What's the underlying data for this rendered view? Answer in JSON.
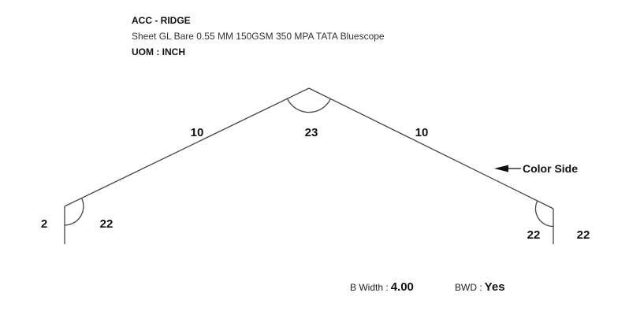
{
  "header": {
    "title": "ACC - RIDGE",
    "spec": "Sheet GL Bare 0.55 MM 150GSM 350 MPA TATA Bluescope",
    "uom": "UOM : INCH"
  },
  "drawing": {
    "labels": {
      "left_hem_length": "2",
      "left_hem_angle": "22",
      "left_leg_length": "10",
      "apex_angle": "23",
      "right_leg_length": "10",
      "right_hem_angle": "22",
      "right_hem_length": "22"
    },
    "color_side": {
      "label": "Color Side",
      "icon": "arrow-left-icon"
    },
    "line_color": "#444444"
  },
  "footer": {
    "bwidth_label": "B Width :",
    "bwidth_value": "4.00",
    "bwd_label": "BWD :",
    "bwd_value": "Yes"
  }
}
